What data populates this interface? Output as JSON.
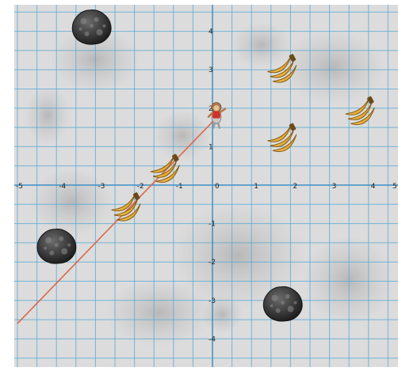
{
  "game": {
    "background": "moon-surface",
    "grid_color": "#4fa7d6",
    "line_color": "#d9684a",
    "x_range": [
      -5,
      5
    ],
    "y_range": [
      -4.5,
      4.5
    ],
    "x_ticks": [
      "-5",
      "-4",
      "-3",
      "-2",
      "-1",
      "0",
      "1",
      "2",
      "3",
      "4",
      "5"
    ],
    "y_ticks": [
      "4",
      "3",
      "2",
      "1",
      "-1",
      "-2",
      "-3",
      "-4"
    ],
    "launch_line": {
      "from": [
        -5,
        -3.6
      ],
      "to": [
        0.1,
        1.75
      ]
    },
    "player": {
      "icon": "monkey-astronaut-icon",
      "x": 0.1,
      "y": 1.9
    },
    "bananas": [
      {
        "icon": "banana-bunch-icon",
        "x": 1.8,
        "y": 3.0
      },
      {
        "icon": "banana-bunch-icon",
        "x": 3.8,
        "y": 1.9
      },
      {
        "icon": "banana-bunch-icon",
        "x": 1.8,
        "y": 1.2
      },
      {
        "icon": "banana-bunch-icon",
        "x": -1.2,
        "y": 0.4
      },
      {
        "icon": "banana-bunch-icon",
        "x": -2.2,
        "y": -0.6
      }
    ],
    "rocks": [
      {
        "icon": "moon-rock-icon",
        "x": -3.1,
        "y": 4.1
      },
      {
        "icon": "moon-rock-icon",
        "x": -4.0,
        "y": -1.6
      },
      {
        "icon": "moon-rock-icon",
        "x": 1.8,
        "y": -3.1
      }
    ]
  }
}
